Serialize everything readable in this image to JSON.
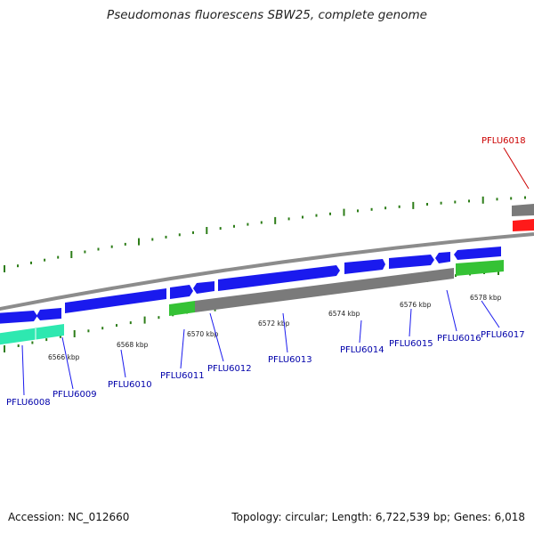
{
  "header": {
    "title": "Pseudomonas fluorescens SBW25, complete genome"
  },
  "footer": {
    "accession": "Accession: NC_012660",
    "summary": "Topology: circular; Length: 6,722,539 bp; Genes: 6,018"
  },
  "colors": {
    "forward_gene": "#1a1aee",
    "pseudo_gene": "#7a7a7a",
    "rna_gene": "#35c235",
    "cyan_gene": "#2ee8b0",
    "highlight_gene": "#ff1a1a",
    "backbone": "#8c8c8c",
    "ticks": "#2d7d18",
    "label_normal": "#0000aa",
    "label_highlight": "#cc0000"
  },
  "ruler": {
    "unit": "kbp",
    "ticks": [
      "6566 kbp",
      "6568 kbp",
      "6570 kbp",
      "6572 kbp",
      "6574 kbp",
      "6576 kbp",
      "6578 kbp"
    ]
  },
  "genes": [
    {
      "id": "PFLU6008",
      "type": "cyan"
    },
    {
      "id": "PFLU6009",
      "type": "cyan"
    },
    {
      "id": "PFLU6010",
      "type": "forward"
    },
    {
      "id": "PFLU6011",
      "type": "rna"
    },
    {
      "id": "PFLU6012",
      "type": "pseudo"
    },
    {
      "id": "PFLU6013",
      "type": "pseudo"
    },
    {
      "id": "PFLU6014",
      "type": "pseudo"
    },
    {
      "id": "PFLU6015",
      "type": "pseudo"
    },
    {
      "id": "PFLU6016",
      "type": "pseudo"
    },
    {
      "id": "PFLU6017",
      "type": "rna"
    },
    {
      "id": "PFLU6018",
      "type": "highlight"
    }
  ]
}
